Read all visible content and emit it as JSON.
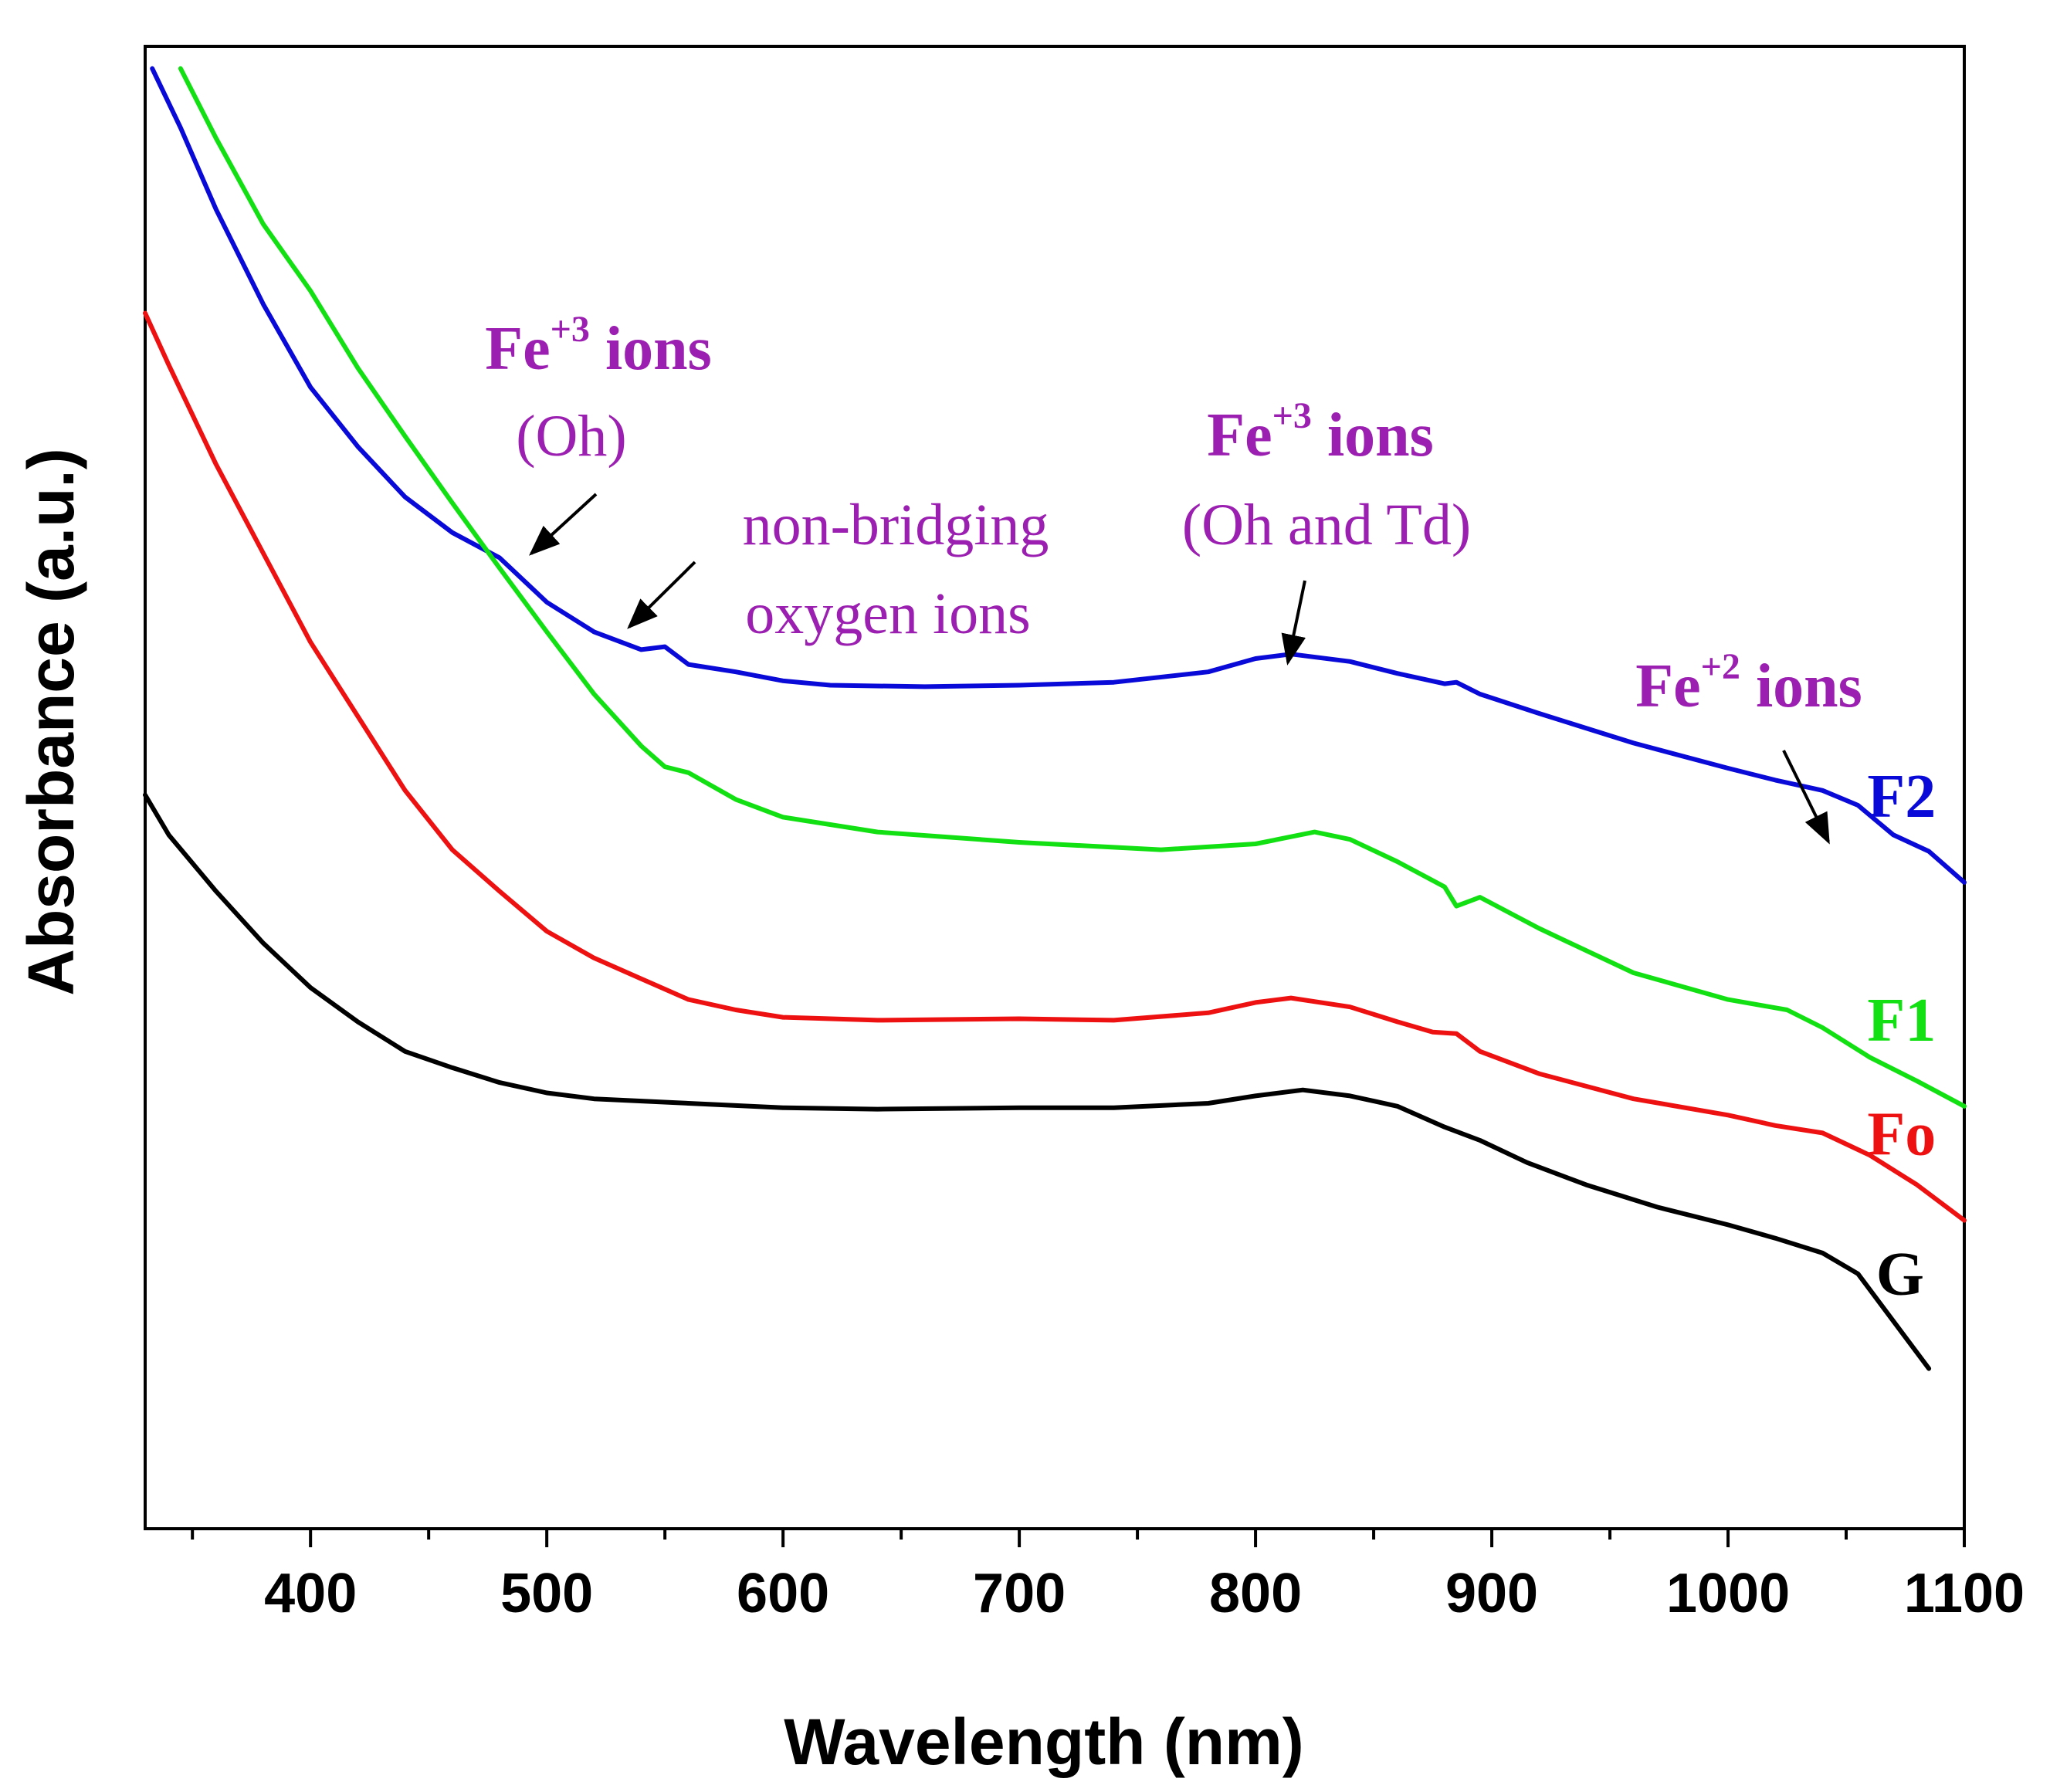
{
  "chart_data": {
    "type": "line",
    "xlabel": "Wavelength (nm)",
    "ylabel": "Absorbance (a.u.)",
    "xlim": [
      330,
      1100
    ],
    "ylim": [
      0,
      1
    ],
    "x_ticks": [
      400,
      500,
      600,
      700,
      800,
      900,
      1000,
      1100
    ],
    "y_ticks_labeled": false,
    "grid": false,
    "legend": "inline labels at right end of each curve",
    "series": [
      {
        "name": "F2",
        "color": "#0a0ad8",
        "points": [
          [
            333,
            0.985
          ],
          [
            345,
            0.945
          ],
          [
            360,
            0.89
          ],
          [
            380,
            0.826
          ],
          [
            400,
            0.77
          ],
          [
            420,
            0.73
          ],
          [
            440,
            0.696
          ],
          [
            460,
            0.672
          ],
          [
            480,
            0.655
          ],
          [
            500,
            0.625
          ],
          [
            520,
            0.605
          ],
          [
            540,
            0.593
          ],
          [
            550,
            0.595
          ],
          [
            560,
            0.583
          ],
          [
            580,
            0.578
          ],
          [
            600,
            0.572
          ],
          [
            620,
            0.569
          ],
          [
            660,
            0.568
          ],
          [
            700,
            0.569
          ],
          [
            740,
            0.571
          ],
          [
            780,
            0.578
          ],
          [
            800,
            0.587
          ],
          [
            815,
            0.59
          ],
          [
            840,
            0.585
          ],
          [
            860,
            0.577
          ],
          [
            880,
            0.57
          ],
          [
            885,
            0.571
          ],
          [
            895,
            0.563
          ],
          [
            920,
            0.55
          ],
          [
            960,
            0.53
          ],
          [
            1000,
            0.513
          ],
          [
            1020,
            0.505
          ],
          [
            1040,
            0.498
          ],
          [
            1055,
            0.488
          ],
          [
            1070,
            0.468
          ],
          [
            1085,
            0.457
          ],
          [
            1100,
            0.436
          ]
        ]
      },
      {
        "name": "F1",
        "color": "#12e012",
        "points": [
          [
            345,
            0.985
          ],
          [
            360,
            0.938
          ],
          [
            380,
            0.88
          ],
          [
            400,
            0.835
          ],
          [
            420,
            0.783
          ],
          [
            440,
            0.737
          ],
          [
            460,
            0.692
          ],
          [
            480,
            0.648
          ],
          [
            500,
            0.605
          ],
          [
            520,
            0.563
          ],
          [
            540,
            0.528
          ],
          [
            550,
            0.514
          ],
          [
            560,
            0.51
          ],
          [
            580,
            0.492
          ],
          [
            600,
            0.48
          ],
          [
            640,
            0.47
          ],
          [
            700,
            0.463
          ],
          [
            760,
            0.458
          ],
          [
            800,
            0.462
          ],
          [
            825,
            0.47
          ],
          [
            840,
            0.465
          ],
          [
            860,
            0.45
          ],
          [
            880,
            0.433
          ],
          [
            885,
            0.42
          ],
          [
            895,
            0.426
          ],
          [
            920,
            0.405
          ],
          [
            960,
            0.375
          ],
          [
            1000,
            0.357
          ],
          [
            1025,
            0.35
          ],
          [
            1040,
            0.338
          ],
          [
            1060,
            0.318
          ],
          [
            1080,
            0.302
          ],
          [
            1100,
            0.285
          ]
        ]
      },
      {
        "name": "Fo",
        "color": "#ee1111",
        "points": [
          [
            330,
            0.82
          ],
          [
            340,
            0.785
          ],
          [
            360,
            0.718
          ],
          [
            380,
            0.658
          ],
          [
            400,
            0.598
          ],
          [
            420,
            0.548
          ],
          [
            440,
            0.498
          ],
          [
            460,
            0.458
          ],
          [
            480,
            0.43
          ],
          [
            500,
            0.403
          ],
          [
            520,
            0.385
          ],
          [
            540,
            0.371
          ],
          [
            560,
            0.357
          ],
          [
            580,
            0.35
          ],
          [
            600,
            0.345
          ],
          [
            640,
            0.343
          ],
          [
            700,
            0.344
          ],
          [
            740,
            0.343
          ],
          [
            780,
            0.348
          ],
          [
            800,
            0.355
          ],
          [
            815,
            0.358
          ],
          [
            840,
            0.352
          ],
          [
            860,
            0.342
          ],
          [
            875,
            0.335
          ],
          [
            885,
            0.334
          ],
          [
            895,
            0.322
          ],
          [
            920,
            0.307
          ],
          [
            960,
            0.29
          ],
          [
            1000,
            0.279
          ],
          [
            1020,
            0.272
          ],
          [
            1040,
            0.267
          ],
          [
            1060,
            0.252
          ],
          [
            1080,
            0.232
          ],
          [
            1100,
            0.208
          ]
        ]
      },
      {
        "name": "G",
        "color": "#000000",
        "points": [
          [
            330,
            0.495
          ],
          [
            340,
            0.468
          ],
          [
            360,
            0.43
          ],
          [
            380,
            0.395
          ],
          [
            400,
            0.365
          ],
          [
            420,
            0.342
          ],
          [
            440,
            0.322
          ],
          [
            460,
            0.311
          ],
          [
            480,
            0.301
          ],
          [
            500,
            0.294
          ],
          [
            520,
            0.29
          ],
          [
            560,
            0.287
          ],
          [
            600,
            0.284
          ],
          [
            640,
            0.283
          ],
          [
            700,
            0.284
          ],
          [
            740,
            0.284
          ],
          [
            780,
            0.287
          ],
          [
            800,
            0.292
          ],
          [
            820,
            0.296
          ],
          [
            840,
            0.292
          ],
          [
            860,
            0.285
          ],
          [
            880,
            0.271
          ],
          [
            895,
            0.262
          ],
          [
            915,
            0.247
          ],
          [
            940,
            0.232
          ],
          [
            970,
            0.217
          ],
          [
            1000,
            0.205
          ],
          [
            1020,
            0.196
          ],
          [
            1040,
            0.186
          ],
          [
            1055,
            0.172
          ],
          [
            1070,
            0.14
          ],
          [
            1085,
            0.108
          ]
        ]
      }
    ],
    "annotations": [
      {
        "id": "fe3-oh",
        "line1_base": "Fe",
        "line1_sup": "+3",
        "line1_tail": " ions",
        "line2": "(Oh)"
      },
      {
        "id": "nbo",
        "line1": "non-bridging",
        "line2": "oxygen ions"
      },
      {
        "id": "fe3-ohtd",
        "line1_base": "Fe",
        "line1_sup": "+3",
        "line1_tail": " ions",
        "line2": "(Oh and Td)"
      },
      {
        "id": "fe2",
        "line1_base": "Fe",
        "line1_sup": "+2",
        "line1_tail": " ions"
      }
    ]
  }
}
